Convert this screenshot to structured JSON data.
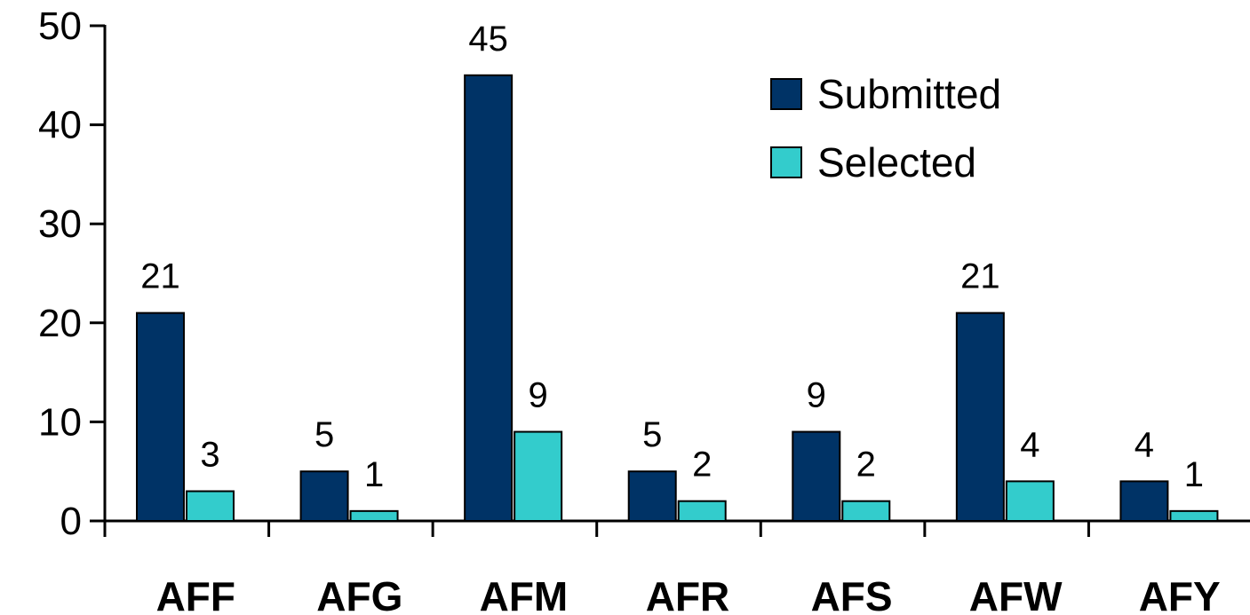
{
  "chart_data": {
    "type": "bar",
    "title": "",
    "xlabel": "",
    "ylabel": "",
    "categories": [
      "AFF",
      "AFG",
      "AFM",
      "AFR",
      "AFS",
      "AFW",
      "AFY"
    ],
    "series": [
      {
        "name": "Submitted",
        "values": [
          21,
          5,
          45,
          5,
          9,
          21,
          4
        ],
        "labels": [
          "21",
          "5",
          "45",
          "5",
          "9",
          "21",
          "4"
        ],
        "color": "#003366"
      },
      {
        "name": "Selected",
        "values": [
          3,
          1,
          9,
          2,
          2,
          4,
          1
        ],
        "labels": [
          "3",
          "1",
          "9",
          "2",
          "2",
          "4",
          "1"
        ],
        "color": "#33CCCC"
      }
    ],
    "ylim": [
      0,
      50
    ],
    "yticks": [
      0,
      10,
      20,
      30,
      40,
      50
    ],
    "grid": false,
    "legend_position": "top-right",
    "data_labels": true
  }
}
